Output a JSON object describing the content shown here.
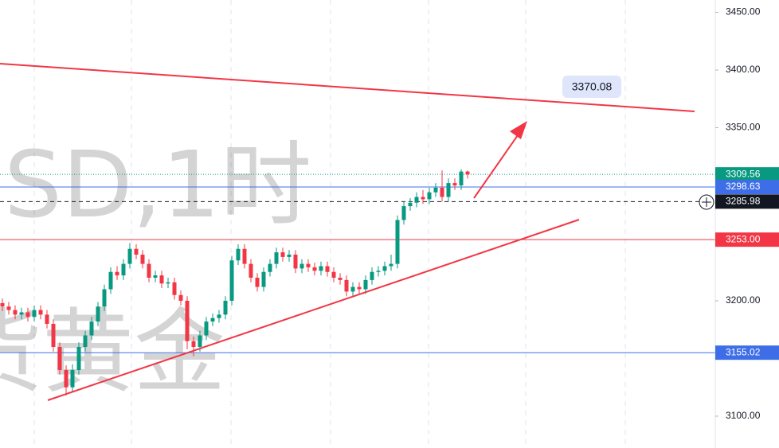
{
  "chart_data": {
    "type": "candlestick",
    "watermark": [
      "SD,1时",
      "货黄金"
    ],
    "annotation": "3370.08",
    "ylim": [
      3072.4,
      3460.7
    ],
    "yticks": [
      {
        "value": 3100,
        "label": "3100.00"
      },
      {
        "value": 3200,
        "label": "3200.00"
      },
      {
        "value": 3350,
        "label": "3350.00"
      },
      {
        "value": 3400,
        "label": "3400.00"
      },
      {
        "value": 3450,
        "label": "3450.00"
      }
    ],
    "up_color": "#089981",
    "down_color": "#f23645",
    "open": [
      3198,
      3195,
      3192,
      3188,
      3190,
      3186,
      3192,
      3188,
      3180,
      3160,
      3140,
      3125,
      3140,
      3160,
      3170,
      3182,
      3195,
      3210,
      3225,
      3222,
      3232,
      3245,
      3240,
      3232,
      3220,
      3222,
      3215,
      3216,
      3205,
      3200,
      3165,
      3160,
      3170,
      3182,
      3185,
      3188,
      3200,
      3235,
      3245,
      3232,
      3220,
      3212,
      3225,
      3232,
      3242,
      3238,
      3240,
      3228,
      3232,
      3229,
      3226,
      3230,
      3225,
      3220,
      3218,
      3208,
      3212,
      3210,
      3218,
      3225,
      3226,
      3230,
      3232,
      3270,
      3282,
      3285,
      3290,
      3288,
      3294,
      3298,
      3290,
      3302,
      3300,
      3312
    ],
    "high": [
      3202,
      3199,
      3196,
      3194,
      3194,
      3196,
      3196,
      3192,
      3184,
      3164,
      3144,
      3145,
      3164,
      3174,
      3186,
      3199,
      3214,
      3229,
      3230,
      3236,
      3250,
      3249,
      3244,
      3236,
      3226,
      3226,
      3220,
      3220,
      3209,
      3204,
      3169,
      3174,
      3186,
      3189,
      3192,
      3204,
      3239,
      3249,
      3249,
      3236,
      3224,
      3229,
      3236,
      3246,
      3246,
      3244,
      3244,
      3236,
      3236,
      3233,
      3234,
      3234,
      3229,
      3224,
      3222,
      3216,
      3216,
      3222,
      3229,
      3230,
      3234,
      3240,
      3274,
      3286,
      3289,
      3294,
      3296,
      3298,
      3302,
      3313,
      3306,
      3306,
      3314,
      3313
    ],
    "low": [
      3191,
      3188,
      3184,
      3184,
      3182,
      3182,
      3184,
      3176,
      3156,
      3136,
      3118,
      3121,
      3136,
      3156,
      3166,
      3178,
      3191,
      3206,
      3218,
      3218,
      3228,
      3236,
      3228,
      3216,
      3216,
      3211,
      3211,
      3201,
      3196,
      3158,
      3152,
      3156,
      3166,
      3178,
      3181,
      3184,
      3196,
      3231,
      3228,
      3216,
      3208,
      3208,
      3221,
      3228,
      3234,
      3234,
      3224,
      3224,
      3225,
      3222,
      3222,
      3221,
      3216,
      3214,
      3204,
      3204,
      3206,
      3206,
      3214,
      3221,
      3222,
      3226,
      3228,
      3266,
      3278,
      3281,
      3284,
      3284,
      3290,
      3286,
      3286,
      3296,
      3296,
      3306
    ],
    "close": [
      3195,
      3192,
      3188,
      3190,
      3186,
      3192,
      3188,
      3180,
      3160,
      3140,
      3125,
      3140,
      3160,
      3170,
      3182,
      3195,
      3210,
      3225,
      3222,
      3232,
      3245,
      3240,
      3232,
      3220,
      3222,
      3215,
      3216,
      3205,
      3200,
      3165,
      3160,
      3170,
      3182,
      3185,
      3188,
      3200,
      3235,
      3245,
      3232,
      3220,
      3212,
      3225,
      3232,
      3242,
      3238,
      3240,
      3228,
      3232,
      3229,
      3226,
      3230,
      3225,
      3220,
      3218,
      3208,
      3212,
      3210,
      3218,
      3225,
      3226,
      3230,
      3232,
      3270,
      3282,
      3285,
      3290,
      3288,
      3294,
      3298,
      3290,
      3302,
      3300,
      3312,
      3309.56
    ],
    "price_lines": [
      {
        "value": 3309.56,
        "label": "3309.56",
        "color": "#089981",
        "style": "dotted"
      },
      {
        "value": 3298.63,
        "label": "3298.63",
        "color": "#3d6ee8",
        "style": "solid"
      },
      {
        "value": 3285.98,
        "label": "3285.98",
        "color": "#131722",
        "style": "dashed"
      },
      {
        "value": 3253,
        "label": "3253.00",
        "color": "#f23645",
        "style": "solid"
      },
      {
        "value": 3155.02,
        "label": "3155.02",
        "color": "#3d6ee8",
        "style": "solid"
      }
    ]
  }
}
